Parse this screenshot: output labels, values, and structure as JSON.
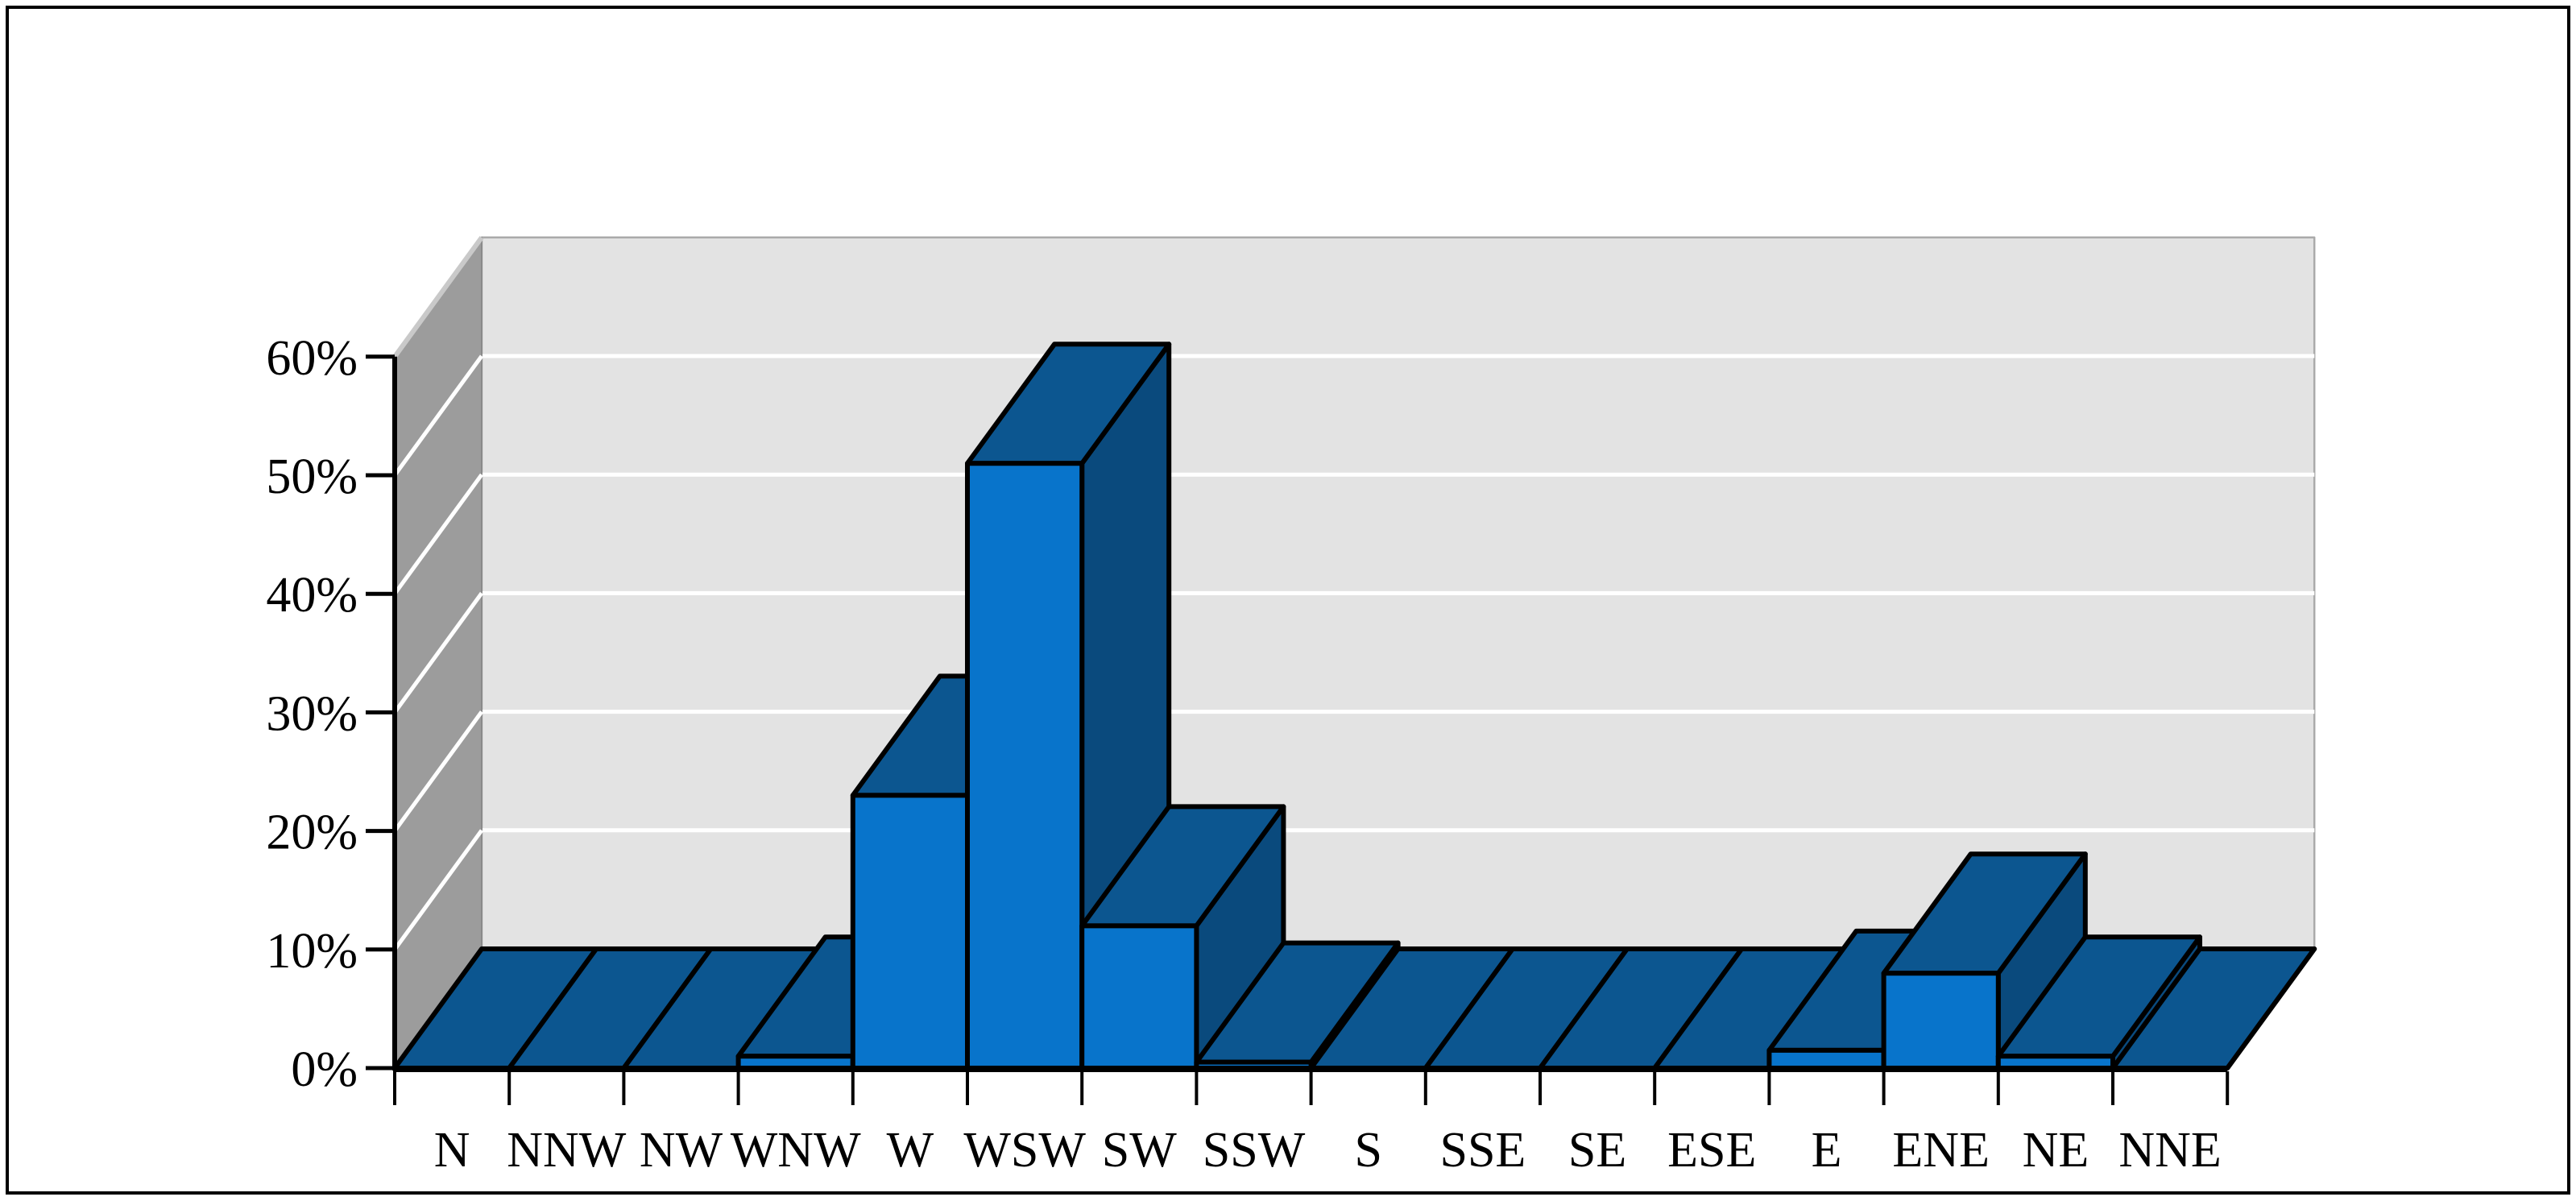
{
  "chart_data": {
    "type": "bar",
    "style": "3d-perspective",
    "title": "",
    "xlabel": "",
    "ylabel": "",
    "categories": [
      "N",
      "NNW",
      "NW",
      "WNW",
      "W",
      "WSW",
      "SW",
      "SSW",
      "S",
      "SSE",
      "SE",
      "ESE",
      "E",
      "ENE",
      "NE",
      "NNE"
    ],
    "values": [
      0,
      0,
      0,
      1,
      23,
      51,
      12,
      0.5,
      0,
      0,
      0,
      0,
      1.5,
      8,
      1,
      0
    ],
    "unit": "%",
    "y_tick_labels": [
      "0%",
      "10%",
      "20%",
      "30%",
      "40%",
      "50%",
      "60%"
    ],
    "y_tick_values": [
      0,
      10,
      20,
      30,
      40,
      50,
      60
    ],
    "ylim": [
      0,
      60
    ],
    "grid": true,
    "legend": "none",
    "colors": {
      "bar_front": "#0874cb",
      "bar_top": "#0c5690",
      "bar_side": "#0a4a7d",
      "back_wall": "#e3e3e3",
      "side_wall": "#9c9c9c",
      "side_wall_edge": "#c9c9c9",
      "gridline": "#ffffff",
      "outline": "#000000",
      "figure_border": "#000000",
      "background": "#ffffff"
    }
  }
}
